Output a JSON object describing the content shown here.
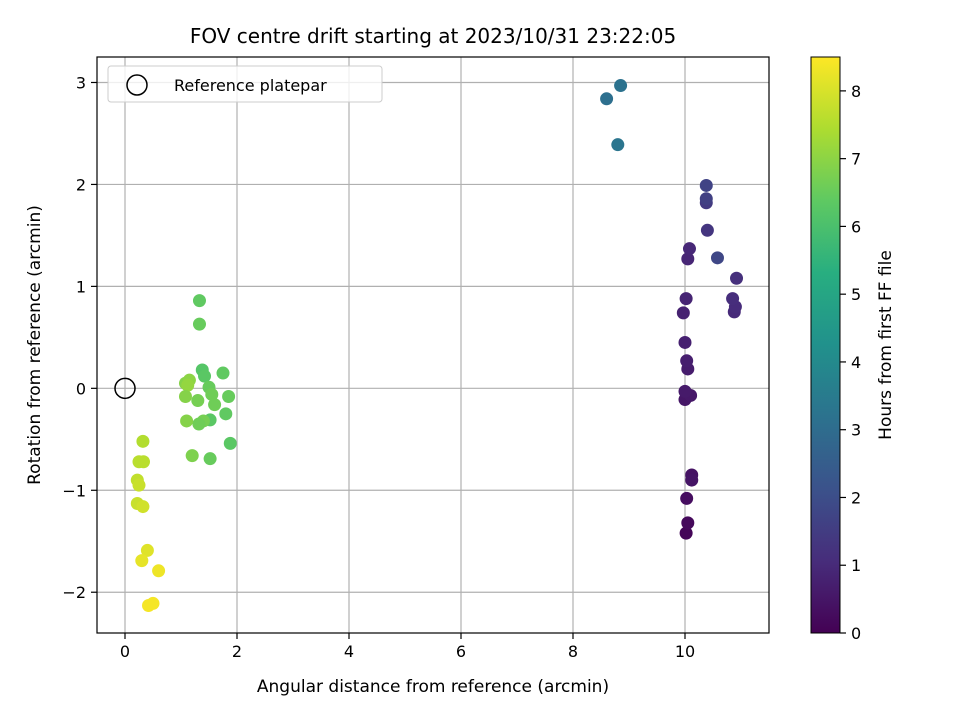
{
  "chart_data": {
    "type": "scatter",
    "title": "FOV centre drift starting at 2023/10/31 23:22:05",
    "xlabel": "Angular distance from reference (arcmin)",
    "ylabel": "Rotation from reference (arcmin)",
    "xlim": [
      -0.5,
      11.5
    ],
    "ylim": [
      -2.4,
      3.25
    ],
    "xticks": [
      0,
      2,
      4,
      6,
      8,
      10
    ],
    "yticks": [
      -2,
      -1,
      0,
      1,
      2,
      3
    ],
    "xtick_labels": [
      "0",
      "2",
      "4",
      "6",
      "8",
      "10"
    ],
    "ytick_labels": [
      "−2",
      "−1",
      "0",
      "1",
      "2",
      "3"
    ],
    "grid": true,
    "colormap": "viridis",
    "colorbar": {
      "label": "Hours from first FF file",
      "range": [
        0,
        8.5
      ],
      "ticks": [
        0,
        1,
        2,
        3,
        4,
        5,
        6,
        7,
        8
      ],
      "tick_labels": [
        "0",
        "1",
        "2",
        "3",
        "4",
        "5",
        "6",
        "7",
        "8"
      ]
    },
    "legend": {
      "placement": "upper-left",
      "entries": [
        "Reference platepar"
      ]
    },
    "reference_point": {
      "x": 0,
      "y": 0
    },
    "points": [
      {
        "x": 10.02,
        "y": -1.42,
        "h": 0.1
      },
      {
        "x": 10.05,
        "y": -1.32,
        "h": 0.2
      },
      {
        "x": 10.03,
        "y": -1.08,
        "h": 0.3
      },
      {
        "x": 10.12,
        "y": -0.85,
        "h": 0.4
      },
      {
        "x": 10.12,
        "y": -0.9,
        "h": 0.45
      },
      {
        "x": 10.0,
        "y": -0.11,
        "h": 0.5
      },
      {
        "x": 10.1,
        "y": -0.07,
        "h": 0.55
      },
      {
        "x": 10.0,
        "y": -0.03,
        "h": 0.6
      },
      {
        "x": 10.05,
        "y": 0.19,
        "h": 0.65
      },
      {
        "x": 10.03,
        "y": 0.27,
        "h": 0.7
      },
      {
        "x": 10.0,
        "y": 0.45,
        "h": 0.75
      },
      {
        "x": 9.97,
        "y": 0.74,
        "h": 0.8
      },
      {
        "x": 10.02,
        "y": 0.88,
        "h": 0.85
      },
      {
        "x": 10.05,
        "y": 1.27,
        "h": 0.9
      },
      {
        "x": 10.08,
        "y": 1.37,
        "h": 0.95
      },
      {
        "x": 10.88,
        "y": 0.75,
        "h": 1.0
      },
      {
        "x": 10.9,
        "y": 0.8,
        "h": 1.05
      },
      {
        "x": 10.85,
        "y": 0.88,
        "h": 1.1
      },
      {
        "x": 10.92,
        "y": 1.08,
        "h": 1.15
      },
      {
        "x": 10.4,
        "y": 1.55,
        "h": 1.3
      },
      {
        "x": 10.38,
        "y": 1.82,
        "h": 1.45
      },
      {
        "x": 10.38,
        "y": 1.86,
        "h": 1.6
      },
      {
        "x": 10.38,
        "y": 1.99,
        "h": 1.7
      },
      {
        "x": 10.58,
        "y": 1.28,
        "h": 1.8
      },
      {
        "x": 8.6,
        "y": 2.84,
        "h": 3.1
      },
      {
        "x": 8.85,
        "y": 2.97,
        "h": 3.2
      },
      {
        "x": 8.8,
        "y": 2.39,
        "h": 3.3
      },
      {
        "x": 1.33,
        "y": 0.86,
        "h": 6.4
      },
      {
        "x": 1.33,
        "y": 0.63,
        "h": 6.5
      },
      {
        "x": 1.38,
        "y": 0.18,
        "h": 6.2
      },
      {
        "x": 1.42,
        "y": 0.12,
        "h": 6.3
      },
      {
        "x": 1.75,
        "y": 0.15,
        "h": 6.4
      },
      {
        "x": 1.5,
        "y": 0.01,
        "h": 6.5
      },
      {
        "x": 1.55,
        "y": -0.06,
        "h": 6.6
      },
      {
        "x": 1.85,
        "y": -0.08,
        "h": 6.5
      },
      {
        "x": 1.6,
        "y": -0.16,
        "h": 6.6
      },
      {
        "x": 1.8,
        "y": -0.25,
        "h": 6.4
      },
      {
        "x": 1.52,
        "y": -0.31,
        "h": 6.3
      },
      {
        "x": 1.4,
        "y": -0.32,
        "h": 6.7
      },
      {
        "x": 1.32,
        "y": -0.35,
        "h": 6.6
      },
      {
        "x": 1.88,
        "y": -0.54,
        "h": 6.3
      },
      {
        "x": 1.52,
        "y": -0.69,
        "h": 6.5
      },
      {
        "x": 1.2,
        "y": -0.66,
        "h": 6.8
      },
      {
        "x": 1.08,
        "y": 0.05,
        "h": 6.9
      },
      {
        "x": 1.15,
        "y": 0.08,
        "h": 7.0
      },
      {
        "x": 1.12,
        "y": 0.03,
        "h": 7.1
      },
      {
        "x": 1.08,
        "y": -0.08,
        "h": 6.9
      },
      {
        "x": 1.3,
        "y": -0.12,
        "h": 6.7
      },
      {
        "x": 1.1,
        "y": -0.32,
        "h": 6.9
      },
      {
        "x": 0.32,
        "y": -0.52,
        "h": 7.5
      },
      {
        "x": 0.25,
        "y": -0.72,
        "h": 7.6
      },
      {
        "x": 0.33,
        "y": -0.72,
        "h": 7.6
      },
      {
        "x": 0.22,
        "y": -0.9,
        "h": 7.7
      },
      {
        "x": 0.25,
        "y": -0.95,
        "h": 7.8
      },
      {
        "x": 0.22,
        "y": -1.13,
        "h": 7.8
      },
      {
        "x": 0.32,
        "y": -1.16,
        "h": 7.9
      },
      {
        "x": 0.4,
        "y": -1.59,
        "h": 8.1
      },
      {
        "x": 0.3,
        "y": -1.69,
        "h": 8.2
      },
      {
        "x": 0.6,
        "y": -1.79,
        "h": 8.3
      },
      {
        "x": 0.42,
        "y": -2.13,
        "h": 8.4
      },
      {
        "x": 0.5,
        "y": -2.11,
        "h": 8.4
      }
    ]
  }
}
